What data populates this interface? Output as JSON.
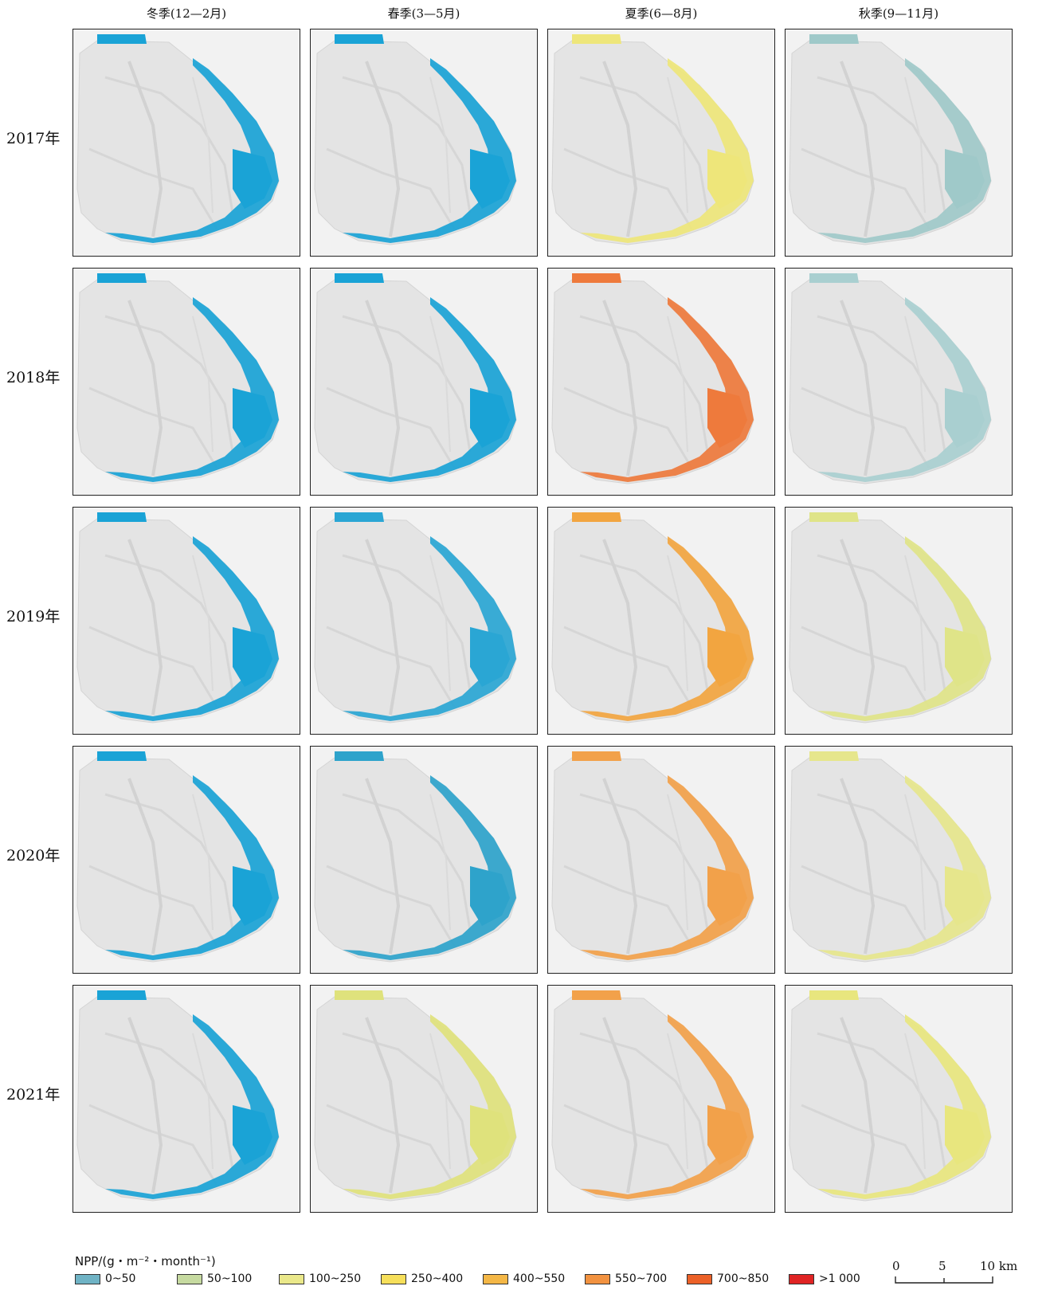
{
  "columns": [
    "冬季(12—2月)",
    "春季(3—5月)",
    "夏季(6—8月)",
    "秋季(9—11月)"
  ],
  "rows": [
    "2017年",
    "2018年",
    "2019年",
    "2020年",
    "2021年"
  ],
  "legend": {
    "title": "NPP/(g・m⁻²・month⁻¹)",
    "items": [
      {
        "label": "0~50",
        "color": "#6fb3c5"
      },
      {
        "label": "50~100",
        "color": "#c6daa0"
      },
      {
        "label": "100~250",
        "color": "#eae88a"
      },
      {
        "label": "250~400",
        "color": "#f6df5a"
      },
      {
        "label": "400~550",
        "color": "#f4b746"
      },
      {
        "label": "550~700",
        "color": "#f29240"
      },
      {
        "label": "700~850",
        "color": "#ec6128"
      },
      {
        "label": ">1 000",
        "color": "#e02424"
      }
    ]
  },
  "scalebar": {
    "labels": [
      "0",
      "5",
      "10 km"
    ]
  },
  "panel_colors": [
    [
      "#1aa3d6",
      "#1aa3d6",
      "#eee67a",
      "#9fc9c9"
    ],
    [
      "#1aa3d6",
      "#1aa3d6",
      "#ee7a3c",
      "#a9cfd0"
    ],
    [
      "#1aa3d6",
      "#2aa6d4",
      "#f2a540",
      "#dfe488"
    ],
    [
      "#1aa3d6",
      "#2ea3cb",
      "#f2a14a",
      "#e6e68c"
    ],
    [
      "#1aa3d6",
      "#dfe27c",
      "#f2a14a",
      "#e8e67e"
    ]
  ]
}
